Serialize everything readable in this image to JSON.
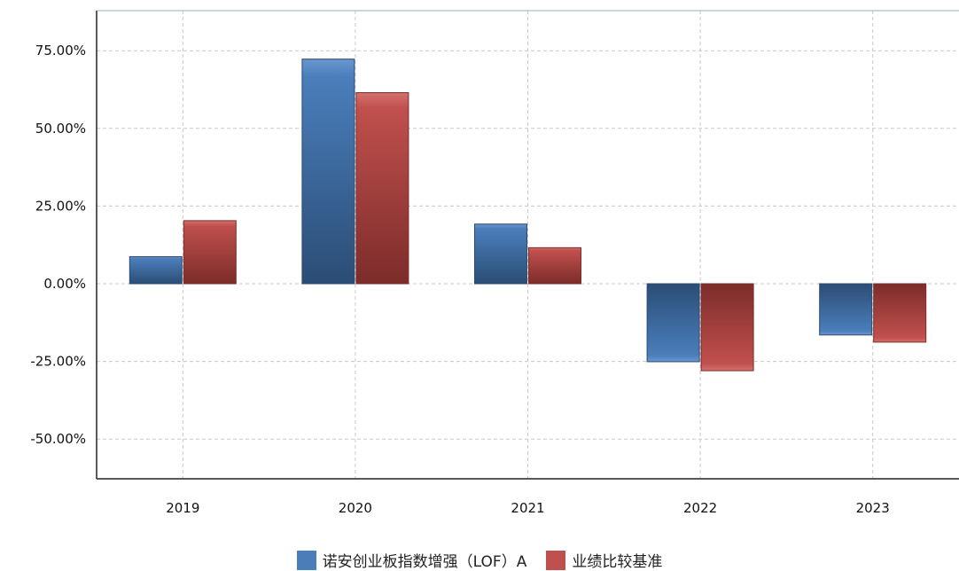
{
  "chart_data": {
    "type": "bar",
    "categories": [
      "2019",
      "2020",
      "2021",
      "2022",
      "2023"
    ],
    "series": [
      {
        "name": "诺安创业板指数增强（LOF）A",
        "values": [
          8.7,
          72.3,
          19.2,
          -25.1,
          -16.5
        ],
        "color": "#4a7ebb"
      },
      {
        "name": "业绩比较基准",
        "values": [
          20.3,
          61.5,
          11.6,
          -28.0,
          -18.8
        ],
        "color": "#c0504d"
      }
    ],
    "y_ticks": [
      "75.00%",
      "50.00%",
      "25.00%",
      "0.00%",
      "-25.00%",
      "-50.00%"
    ],
    "ylim": [
      -62,
      88
    ],
    "grid": true,
    "legend_position": "bottom-center"
  }
}
